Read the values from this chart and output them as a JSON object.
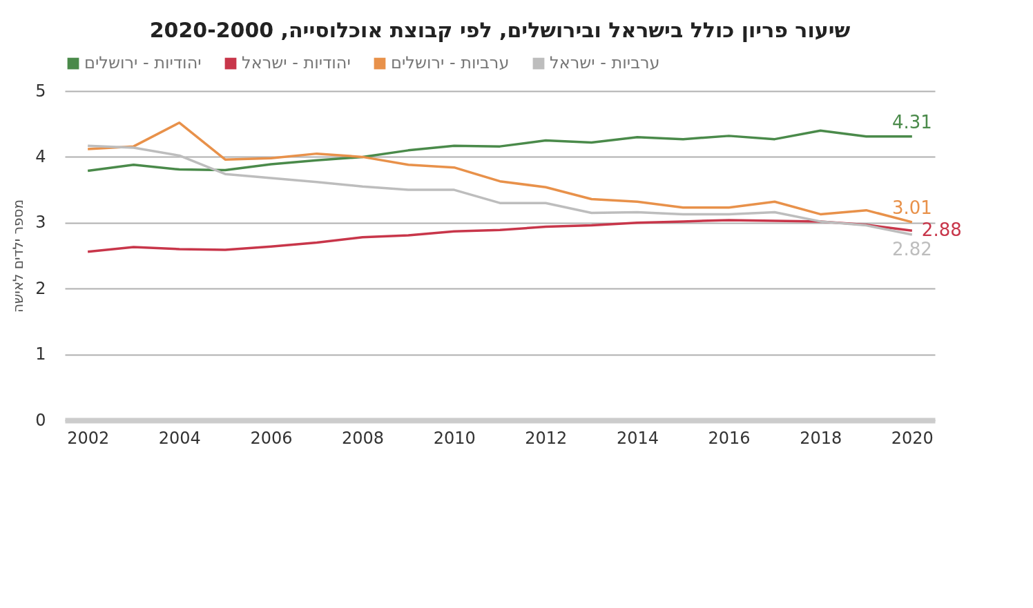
{
  "chart_data": {
    "type": "line",
    "title": "שיעור פריון כולל בישראל ובירושלים, לפי קבוצת אוכלוסייה, 2020-2000",
    "ylabel": "מספר ילדים לאישה",
    "x": [
      2002,
      2003,
      2004,
      2005,
      2006,
      2007,
      2008,
      2009,
      2010,
      2011,
      2012,
      2013,
      2014,
      2015,
      2016,
      2017,
      2018,
      2019,
      2020
    ],
    "series": [
      {
        "name": "יהודיות - ירושלים",
        "color": "#4a8a4a",
        "values": [
          3.79,
          3.88,
          3.81,
          3.8,
          3.89,
          3.95,
          4.0,
          4.1,
          4.17,
          4.16,
          4.25,
          4.22,
          4.3,
          4.27,
          4.32,
          4.27,
          4.4,
          4.31,
          4.31
        ],
        "value_labels": [
          null,
          null,
          null,
          null,
          null,
          null,
          null,
          null,
          null,
          null,
          null,
          null,
          null,
          null,
          null,
          null,
          null,
          null,
          "4.31"
        ]
      },
      {
        "name": "יהודיות - ישראל",
        "color": "#c8364a",
        "values": [
          2.56,
          2.63,
          2.6,
          2.59,
          2.64,
          2.7,
          2.78,
          2.81,
          2.87,
          2.89,
          2.94,
          2.96,
          3.0,
          3.02,
          3.04,
          3.03,
          3.02,
          2.97,
          2.88
        ],
        "value_labels": [
          null,
          null,
          null,
          null,
          null,
          null,
          null,
          null,
          null,
          null,
          null,
          null,
          null,
          null,
          null,
          null,
          null,
          null,
          "2.88"
        ]
      },
      {
        "name": "ערביות - ירושלים",
        "color": "#e8914a",
        "values": [
          4.12,
          4.16,
          4.52,
          3.96,
          3.98,
          4.05,
          4.0,
          3.88,
          3.84,
          3.63,
          3.54,
          3.36,
          3.32,
          3.23,
          3.23,
          3.32,
          3.13,
          3.19,
          3.01
        ],
        "value_labels": [
          null,
          null,
          null,
          null,
          null,
          null,
          null,
          null,
          null,
          null,
          null,
          null,
          null,
          null,
          null,
          null,
          null,
          null,
          "3.01"
        ]
      },
      {
        "name": "ערביות - ישראל",
        "color": "#bdbdbd",
        "values": [
          4.17,
          4.14,
          4.02,
          3.74,
          3.68,
          3.62,
          3.55,
          3.5,
          3.5,
          3.3,
          3.3,
          3.15,
          3.16,
          3.13,
          3.13,
          3.16,
          3.02,
          2.96,
          2.82
        ],
        "value_labels": [
          null,
          null,
          null,
          null,
          null,
          null,
          null,
          null,
          null,
          null,
          null,
          null,
          null,
          null,
          null,
          null,
          null,
          null,
          "2.82"
        ]
      }
    ],
    "xlim": [
      2001.5,
      2020.5
    ],
    "xticks": [
      2002,
      2004,
      2006,
      2008,
      2010,
      2012,
      2014,
      2016,
      2018,
      2020
    ],
    "ylim": [
      0,
      5
    ],
    "yticks": [
      0,
      1,
      2,
      3,
      4,
      5
    ],
    "grid": "y",
    "legend": "top"
  }
}
